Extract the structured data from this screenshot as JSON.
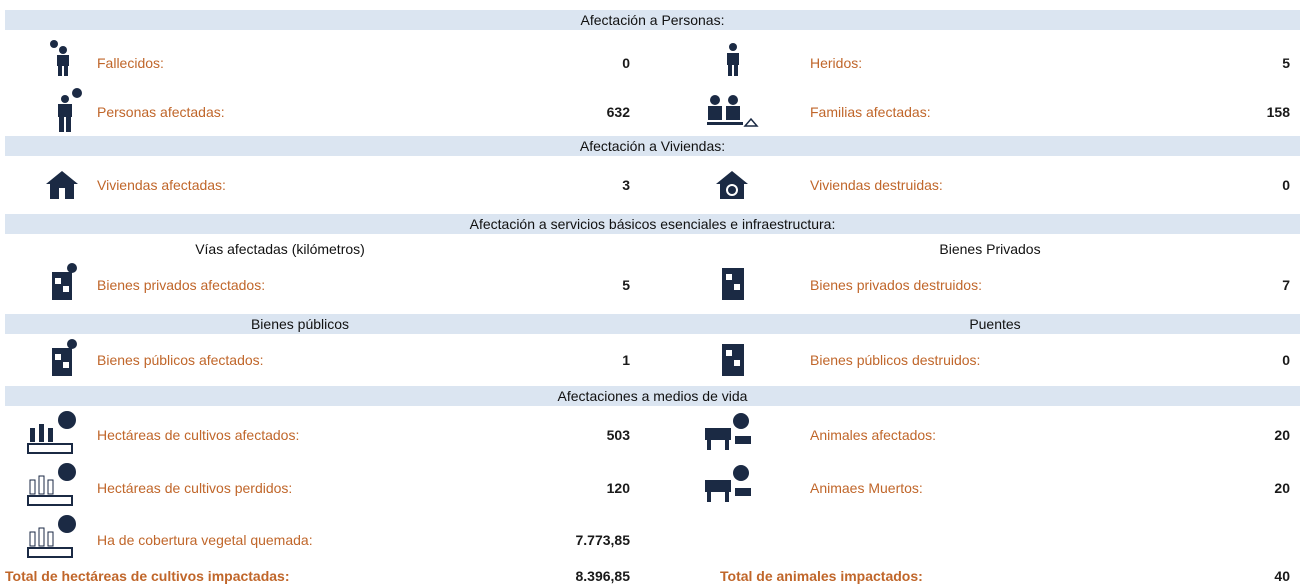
{
  "sections": [
    {
      "title": "Afectación a Personas:",
      "rows": [
        [
          {
            "label": "Fallecidos:",
            "value": 0
          },
          {
            "label": "Heridos:",
            "value": 5
          }
        ],
        [
          {
            "label": "Personas afectadas:",
            "value": 632
          },
          {
            "label": "Familias afectadas:",
            "value": 158
          }
        ]
      ]
    },
    {
      "title": "Afectación a Viviendas:",
      "rows": [
        [
          {
            "label": "Viviendas afectadas:",
            "value": 3
          },
          {
            "label": "Viviendas destruidas:",
            "value": 0
          }
        ]
      ]
    },
    {
      "title": "Afectación a servicios básicos esenciales e infraestructura:",
      "subtitles": [
        "Vías afectadas (kilómetros)",
        "Bienes Privados"
      ],
      "rows": [
        [
          {
            "label": "Bienes privados afectados:",
            "value": 5
          },
          {
            "label": "Bienes privados destruidos:",
            "value": 7
          }
        ]
      ]
    },
    {
      "subtitles": [
        "Bienes públicos",
        "Puentes"
      ],
      "rows": [
        [
          {
            "label": "Bienes públicos afectados:",
            "value": 1
          },
          {
            "label": "Bienes públicos destruidos:",
            "value": 0
          }
        ]
      ]
    },
    {
      "title": "Afectaciones a medios de vida",
      "rows": [
        [
          {
            "label": "Hectáreas de cultivos afectados:",
            "value": 503
          },
          {
            "label": "Animales afectados:",
            "value": 20
          }
        ],
        [
          {
            "label": "Hectáreas de cultivos perdidos:",
            "value": 120
          },
          {
            "label": "Animaes Muertos:",
            "value": 20
          }
        ],
        [
          {
            "label": "Ha de cobertura vegetal quemada:",
            "value": "7.773,85"
          }
        ]
      ]
    }
  ],
  "totals": [
    {
      "label": "Total de hectáreas de cultivos impactadas:",
      "value": "8.396,85"
    },
    {
      "label": "Total de animales impactados:",
      "value": 40
    }
  ]
}
